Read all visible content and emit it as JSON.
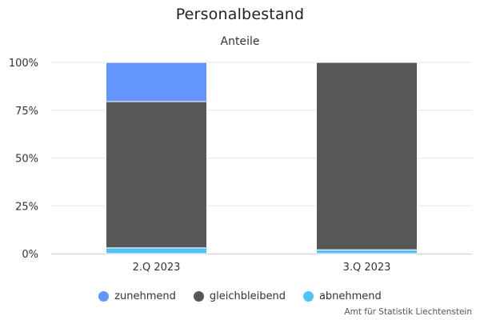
{
  "chart_data": {
    "type": "bar",
    "stacked": "percent",
    "title": "Personalbestand",
    "subtitle": "Anteile",
    "categories": [
      "2.Q 2023",
      "3.Q 2023"
    ],
    "series": [
      {
        "name": "zunehmend",
        "color": "#6495ff",
        "values": [
          20.5,
          0
        ]
      },
      {
        "name": "gleichbleibend",
        "color": "#575757",
        "values": [
          76.5,
          98
        ]
      },
      {
        "name": "abnehmend",
        "color": "#4fc3f7",
        "values": [
          3,
          2
        ]
      }
    ],
    "yticks": [
      "0%",
      "25%",
      "50%",
      "75%",
      "100%"
    ],
    "ylim": [
      0,
      100
    ],
    "grid": true,
    "legend_position": "bottom-center",
    "credits": "Amt für Statistik Liechtenstein"
  }
}
